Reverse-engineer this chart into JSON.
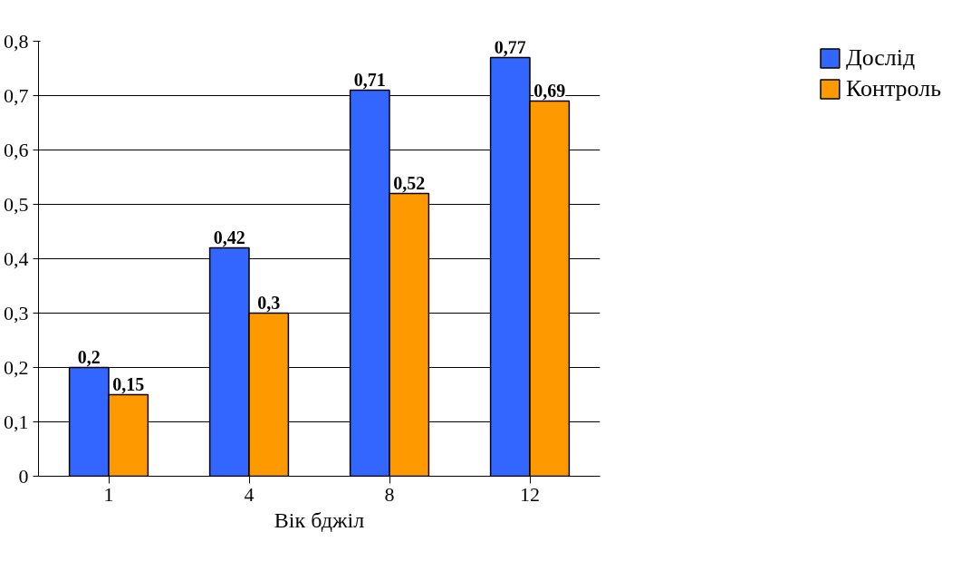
{
  "chart_data": {
    "type": "bar",
    "xlabel": "Вік бджіл",
    "categories": [
      "1",
      "4",
      "8",
      "12"
    ],
    "series": [
      {
        "name": "Дослід",
        "color": "#3366ff",
        "values": [
          0.2,
          0.42,
          0.71,
          0.77
        ],
        "value_labels": [
          "0,2",
          "0,42",
          "0,71",
          "0,77"
        ]
      },
      {
        "name": "Контроль",
        "color": "#ff9900",
        "values": [
          0.15,
          0.3,
          0.52,
          0.69
        ],
        "value_labels": [
          "0,15",
          "0,3",
          "0,52",
          "0,69"
        ]
      }
    ],
    "ylim": [
      0,
      0.8
    ],
    "yticks": [
      0,
      {
        "value": 0.1,
        "label": "0,1"
      },
      {
        "value": 0.2,
        "label": "0,2"
      },
      {
        "value": 0.3,
        "label": "0,3"
      },
      {
        "value": 0.4,
        "label": "0,4"
      },
      {
        "value": 0.5,
        "label": "0,5"
      },
      {
        "value": 0.6,
        "label": "0,6"
      },
      {
        "value": 0.7,
        "label": "0,7"
      },
      {
        "value": 0.8,
        "label": "0,8"
      }
    ],
    "grid": "y",
    "legend": "top right"
  }
}
